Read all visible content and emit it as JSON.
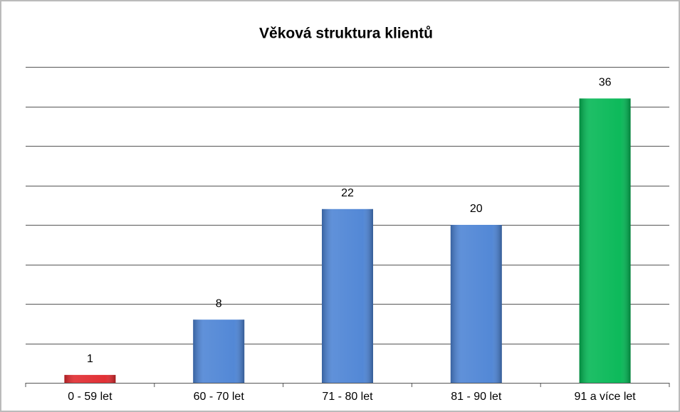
{
  "chart_data": {
    "type": "bar",
    "title": "Věková struktura klientů",
    "categories": [
      "0 - 59 let",
      "60 - 70 let",
      "71 - 80 let",
      "81 - 90 let",
      "91 a více let"
    ],
    "values": [
      1,
      8,
      22,
      20,
      36
    ],
    "colors": [
      "#e0262b",
      "#4a82d4",
      "#4a82d4",
      "#4a82d4",
      "#00b652"
    ],
    "ylim": [
      0,
      40
    ],
    "yticks": [
      0,
      5,
      10,
      15,
      20,
      25,
      30,
      35,
      40
    ],
    "grid": true
  }
}
